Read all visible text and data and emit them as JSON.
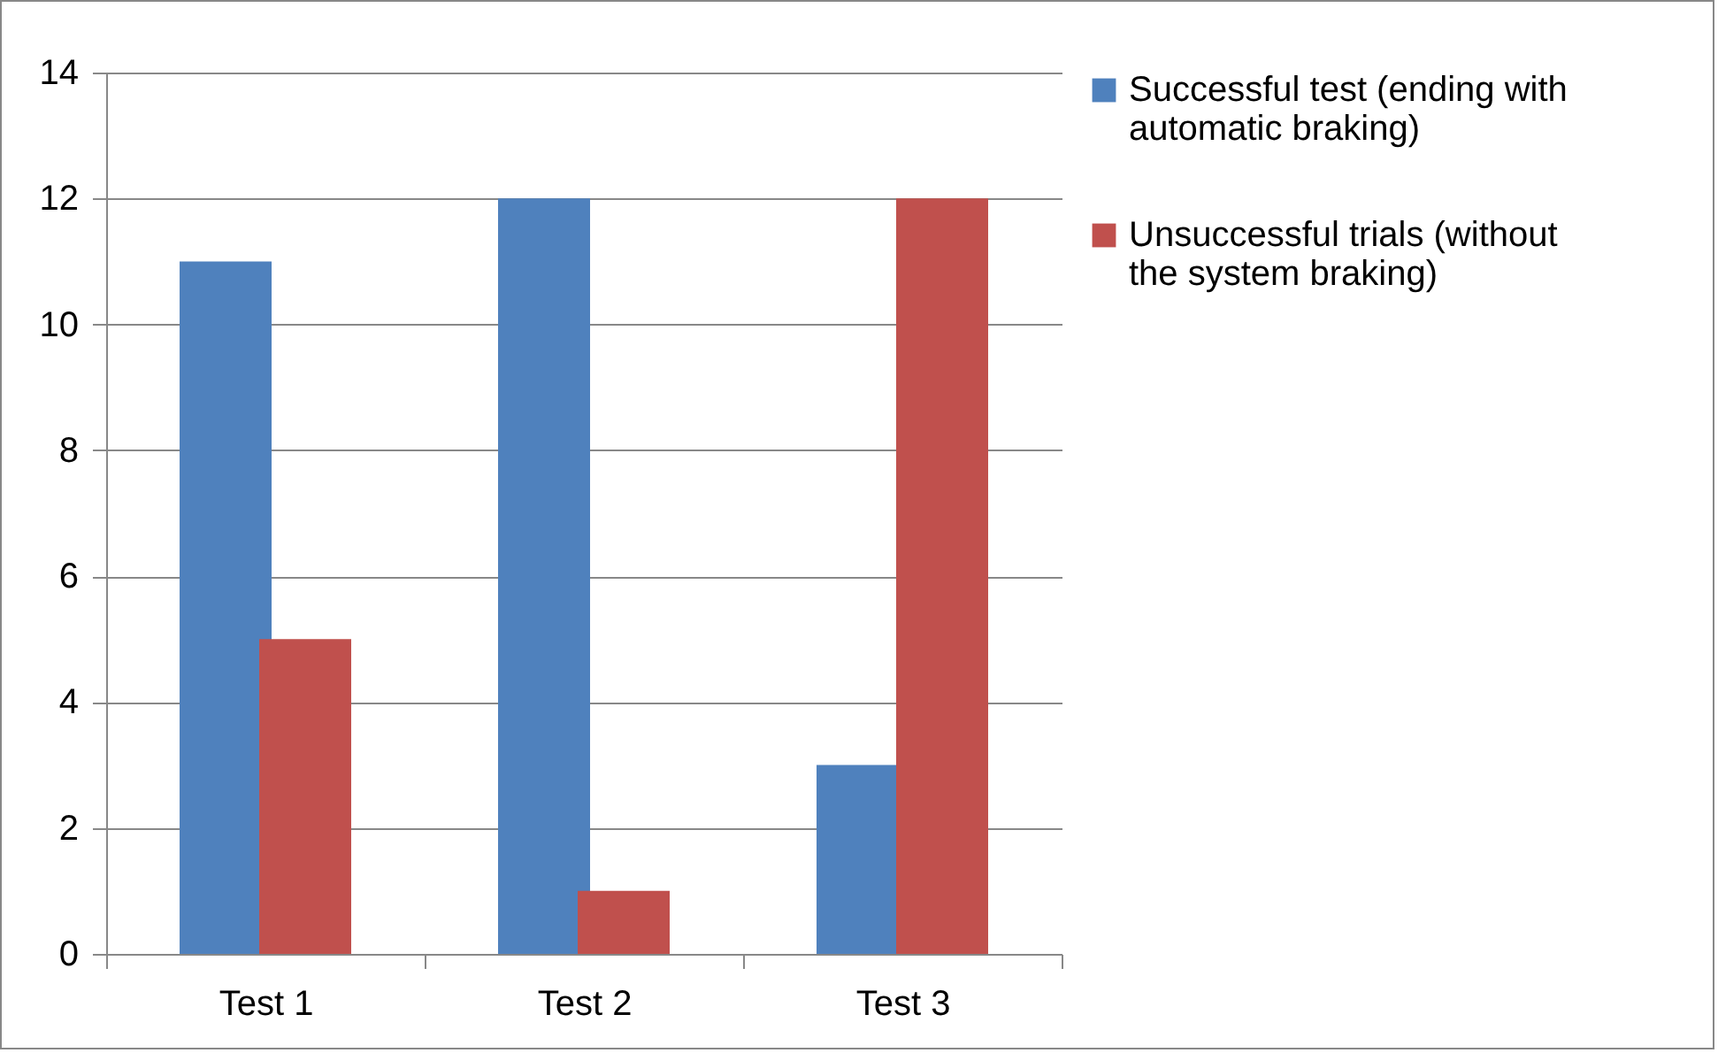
{
  "chart_data": {
    "type": "bar",
    "categories": [
      "Test 1",
      "Test 2",
      "Test 3"
    ],
    "series": [
      {
        "name": "Successful test (ending with automatic braking)",
        "color": "#4f81bd",
        "values": [
          11,
          12,
          3
        ]
      },
      {
        "name": "Unsuccessful trials (without the system braking)",
        "color": "#c0504d",
        "values": [
          5,
          1,
          12
        ]
      }
    ],
    "ylim": [
      0,
      14
    ],
    "yticks": [
      0,
      2,
      4,
      6,
      8,
      10,
      12,
      14
    ],
    "grid": "y",
    "legend": "right"
  }
}
